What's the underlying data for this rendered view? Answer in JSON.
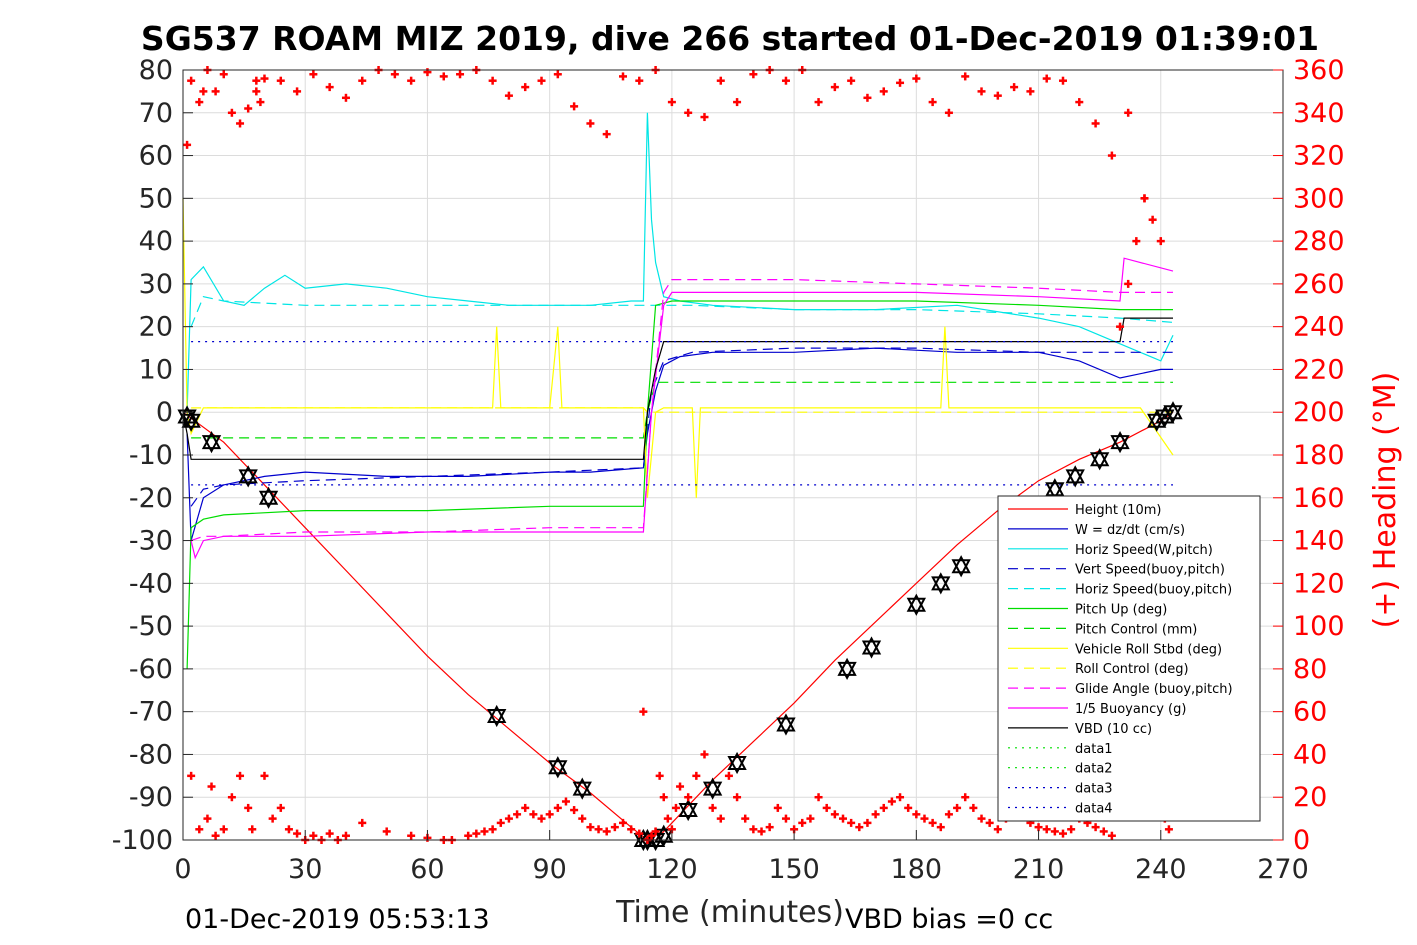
{
  "chart_data": {
    "type": "line",
    "title": "SG537 ROAM MIZ 2019, dive 266 started 01-Dec-2019 01:39:01",
    "xlabel": "Time (minutes)",
    "ylabel_left": "",
    "ylabel_right": "(+) Heading (°M)",
    "xlim": [
      0,
      270
    ],
    "ylim_left": [
      -100,
      80
    ],
    "ylim_right": [
      0,
      360
    ],
    "x_ticks": [
      "0",
      "30",
      "60",
      "90",
      "120",
      "150",
      "180",
      "210",
      "240",
      "270"
    ],
    "y_left_ticks": [
      "-100",
      "-90",
      "-80",
      "-70",
      "-60",
      "-50",
      "-40",
      "-30",
      "-20",
      "-10",
      "0",
      "10",
      "20",
      "30",
      "40",
      "50",
      "60",
      "70",
      "80"
    ],
    "y_right_ticks": [
      "0",
      "20",
      "40",
      "60",
      "80",
      "100",
      "120",
      "140",
      "160",
      "180",
      "200",
      "220",
      "240",
      "260",
      "280",
      "300",
      "320",
      "340",
      "360"
    ],
    "grid": true,
    "legend_position": "bottom-right",
    "footer_left": "01-Dec-2019 05:53:13",
    "footer_right": "VBD bias =0 cc",
    "colors": {
      "height": "#ff0000",
      "w": "#0000cd",
      "horiz": "#00e5e5",
      "pitch": "#00dd00",
      "roll": "#ffff00",
      "glide": "#ff00ff",
      "vbd": "#000000",
      "heading": "#ff0000"
    },
    "series": [
      {
        "name": "Height (10m)",
        "style": "solid",
        "color": "#ff0000",
        "x": [
          0,
          10,
          20,
          30,
          40,
          50,
          60,
          70,
          80,
          90,
          100,
          110,
          114,
          116,
          120,
          130,
          140,
          150,
          160,
          170,
          180,
          190,
          200,
          210,
          220,
          230,
          240,
          243
        ],
        "y": [
          0,
          -7,
          -17,
          -27,
          -37,
          -47,
          -57,
          -66,
          -74,
          -82,
          -89,
          -97,
          -100,
          -100,
          -96,
          -86,
          -77,
          -68,
          -58,
          -49,
          -40,
          -31,
          -23,
          -16,
          -11,
          -7,
          -2,
          0
        ]
      },
      {
        "name": "W = dz/dt (cm/s)",
        "style": "solid",
        "color": "#0000cd",
        "x": [
          1,
          2,
          5,
          10,
          20,
          30,
          50,
          70,
          90,
          100,
          113,
          114,
          116,
          118,
          122,
          130,
          150,
          170,
          190,
          210,
          220,
          230,
          240,
          243
        ],
        "y": [
          -5,
          -30,
          -20,
          -17,
          -15,
          -14,
          -15,
          -15,
          -14,
          -14,
          -13,
          -5,
          5,
          11,
          13,
          14,
          14,
          15,
          14,
          14,
          12,
          8,
          10,
          10
        ]
      },
      {
        "name": "Horiz Speed(W,pitch)",
        "style": "solid",
        "color": "#00e5e5",
        "x": [
          1,
          2,
          5,
          10,
          15,
          20,
          25,
          30,
          40,
          50,
          60,
          70,
          80,
          90,
          100,
          110,
          113,
          114,
          115,
          116,
          118,
          122,
          130,
          150,
          170,
          190,
          210,
          220,
          230,
          240,
          243
        ],
        "y": [
          0,
          31,
          34,
          26,
          25,
          29,
          32,
          29,
          30,
          29,
          27,
          26,
          25,
          25,
          25,
          26,
          26,
          70,
          45,
          35,
          27,
          26,
          25,
          24,
          24,
          25,
          22,
          20,
          16,
          12,
          18
        ]
      },
      {
        "name": "Vert Speed(buoy,pitch)",
        "style": "dash",
        "color": "#0000cd",
        "x": [
          2,
          5,
          10,
          30,
          60,
          90,
          113,
          115,
          118,
          125,
          150,
          180,
          210,
          230,
          243
        ],
        "y": [
          -22,
          -18,
          -17,
          -16,
          -15,
          -14,
          -13,
          5,
          12,
          14,
          15,
          15,
          14,
          14,
          14
        ]
      },
      {
        "name": "Horiz Speed(buoy,pitch)",
        "style": "dash",
        "color": "#00e5e5",
        "x": [
          2,
          5,
          10,
          30,
          60,
          90,
          113,
          115,
          118,
          125,
          150,
          180,
          210,
          230,
          243
        ],
        "y": [
          20,
          27,
          26,
          25,
          25,
          25,
          25,
          25,
          25,
          25,
          24,
          24,
          23,
          22,
          21
        ]
      },
      {
        "name": "Pitch Up (deg)",
        "style": "solid",
        "color": "#00dd00",
        "x": [
          1,
          2,
          5,
          10,
          30,
          60,
          90,
          113,
          114,
          116,
          120,
          150,
          180,
          210,
          230,
          240,
          243
        ],
        "y": [
          -60,
          -27,
          -25,
          -24,
          -23,
          -23,
          -22,
          -22,
          0,
          25,
          26,
          26,
          26,
          25,
          24,
          24,
          24
        ]
      },
      {
        "name": "Pitch Control (mm)",
        "style": "dash",
        "color": "#00dd00",
        "x": [
          2,
          113,
          114,
          116,
          243
        ],
        "y": [
          -6,
          -6,
          0,
          7,
          7
        ]
      },
      {
        "name": "Vehicle Roll Stbd (deg)",
        "style": "solid",
        "color": "#ffff00",
        "x": [
          0,
          1,
          2,
          5,
          20,
          40,
          60,
          76,
          77,
          78,
          90,
          92,
          93,
          94,
          110,
          113,
          114,
          116,
          118,
          125,
          126,
          127,
          140,
          160,
          186,
          187,
          188,
          200,
          220,
          235,
          243
        ],
        "y": [
          50,
          0,
          -5,
          1,
          1,
          1,
          1,
          1,
          20,
          1,
          1,
          20,
          1,
          1,
          1,
          1,
          -20,
          0,
          1,
          1,
          -20,
          1,
          1,
          1,
          1,
          20,
          1,
          1,
          1,
          1,
          -10
        ]
      },
      {
        "name": "Roll Control (deg)",
        "style": "dash",
        "color": "#ffff00",
        "x": [
          2,
          113,
          114,
          243
        ],
        "y": [
          1,
          1,
          0,
          0
        ]
      },
      {
        "name": "Glide Angle (buoy,pitch)",
        "style": "dash",
        "color": "#ff00ff",
        "x": [
          2,
          5,
          10,
          30,
          60,
          90,
          113,
          115,
          118,
          120,
          150,
          180,
          210,
          230,
          243
        ],
        "y": [
          -30,
          -29,
          -29,
          -28,
          -28,
          -27,
          -27,
          0,
          28,
          31,
          31,
          30,
          29,
          28,
          28
        ]
      },
      {
        "name": "1/5 Buoyancy (g)",
        "style": "solid",
        "color": "#ff00ff",
        "x": [
          2,
          3,
          5,
          10,
          30,
          60,
          90,
          113,
          115,
          118,
          120,
          150,
          180,
          210,
          230,
          231,
          243
        ],
        "y": [
          -30,
          -34,
          -30,
          -29,
          -29,
          -28,
          -28,
          -28,
          0,
          25,
          28,
          28,
          28,
          27,
          26,
          36,
          33
        ]
      },
      {
        "name": "VBD (10 cc)",
        "style": "solid",
        "color": "#000000",
        "x": [
          0,
          1,
          2,
          113,
          114,
          116,
          118,
          230,
          231,
          243
        ],
        "y": [
          0,
          -5,
          -11,
          -11,
          0,
          10,
          16.5,
          16.5,
          22,
          22
        ]
      },
      {
        "name": "data1",
        "style": "dot",
        "color": "#00dd00",
        "x": [],
        "y": []
      },
      {
        "name": "data2",
        "style": "dot",
        "color": "#00dd00",
        "x": [],
        "y": []
      },
      {
        "name": "data3",
        "style": "dot",
        "color": "#0000cd",
        "x": [
          2,
          243
        ],
        "y": [
          16.5,
          16.5
        ]
      },
      {
        "name": "data4",
        "style": "dot",
        "color": "#0000cd",
        "x": [
          2,
          243
        ],
        "y": [
          -17,
          -17
        ]
      }
    ],
    "sample_markers": {
      "x": [
        1,
        2,
        7,
        16,
        21,
        77,
        92,
        98,
        113,
        114,
        116,
        118,
        124,
        130,
        136,
        148,
        163,
        169,
        180,
        186,
        191,
        214,
        219,
        225,
        230,
        239,
        241,
        243
      ],
      "y": [
        -1,
        -2,
        -7,
        -15,
        -20,
        -71,
        -83,
        -88,
        -100,
        -100,
        -100,
        -99,
        -93,
        -88,
        -82,
        -73,
        -60,
        -55,
        -45,
        -40,
        -36,
        -18,
        -15,
        -11,
        -7,
        -2,
        -1,
        0
      ]
    },
    "heading_points": {
      "axis": "right",
      "color": "#ff0000",
      "x": [
        1,
        2,
        4,
        5,
        6,
        7,
        8,
        10,
        12,
        14,
        16,
        17,
        18,
        19,
        20,
        22,
        24,
        26,
        28,
        30,
        32,
        34,
        36,
        38,
        40,
        44,
        50,
        56,
        60,
        64,
        66,
        70,
        72,
        74,
        76,
        78,
        80,
        82,
        84,
        86,
        88,
        90,
        92,
        94,
        96,
        98,
        100,
        102,
        104,
        106,
        108,
        110,
        112,
        113,
        114,
        115,
        116,
        117,
        118,
        119,
        120,
        121,
        122,
        124,
        126,
        128,
        130,
        132,
        134,
        136,
        138,
        140,
        142,
        144,
        146,
        148,
        150,
        152,
        154,
        156,
        158,
        160,
        162,
        164,
        166,
        168,
        170,
        172,
        174,
        176,
        178,
        180,
        182,
        184,
        186,
        188,
        190,
        192,
        194,
        196,
        198,
        200,
        202,
        204,
        206,
        208,
        210,
        212,
        214,
        216,
        218,
        220,
        222,
        224,
        226,
        228,
        230,
        232,
        234,
        236,
        238,
        240,
        241,
        242
      ],
      "y": [
        325,
        30,
        5,
        350,
        10,
        25,
        2,
        5,
        20,
        30,
        15,
        5,
        355,
        345,
        30,
        10,
        15,
        5,
        3,
        0,
        2,
        0,
        3,
        0,
        2,
        8,
        4,
        2,
        1,
        0,
        0,
        2,
        3,
        4,
        5,
        8,
        10,
        12,
        15,
        12,
        10,
        12,
        15,
        18,
        14,
        10,
        6,
        5,
        4,
        6,
        8,
        5,
        3,
        60,
        0,
        2,
        4,
        30,
        20,
        10,
        5,
        15,
        25,
        20,
        30,
        40,
        15,
        10,
        30,
        20,
        10,
        5,
        4,
        6,
        15,
        10,
        5,
        8,
        10,
        20,
        15,
        12,
        10,
        8,
        6,
        8,
        12,
        15,
        18,
        20,
        15,
        12,
        10,
        8,
        6,
        12,
        15,
        20,
        15,
        10,
        8,
        5,
        10,
        15,
        12,
        8,
        6,
        5,
        4,
        3,
        5,
        10,
        8,
        6,
        4,
        2,
        240,
        260,
        280,
        300,
        290,
        20,
        10,
        5
      ]
    },
    "heading_top_points": {
      "axis": "right",
      "color": "#ff0000",
      "x": [
        2,
        4,
        6,
        8,
        10,
        12,
        14,
        16,
        18,
        20,
        24,
        28,
        32,
        36,
        40,
        44,
        48,
        52,
        56,
        60,
        64,
        68,
        72,
        76,
        80,
        84,
        88,
        92,
        96,
        100,
        104,
        108,
        112,
        116,
        120,
        124,
        128,
        132,
        136,
        140,
        144,
        148,
        152,
        156,
        160,
        164,
        168,
        172,
        176,
        180,
        184,
        188,
        192,
        196,
        200,
        204,
        208,
        212,
        216,
        220,
        224,
        228,
        232,
        236,
        240
      ],
      "y": [
        355,
        345,
        360,
        350,
        358,
        340,
        335,
        342,
        350,
        356,
        355,
        350,
        358,
        352,
        347,
        355,
        360,
        358,
        355,
        359,
        357,
        358,
        360,
        355,
        348,
        352,
        355,
        358,
        343,
        335,
        330,
        357,
        355,
        360,
        345,
        340,
        338,
        355,
        345,
        358,
        360,
        355,
        360,
        345,
        352,
        355,
        347,
        350,
        354,
        356,
        345,
        340,
        357,
        350,
        348,
        352,
        350,
        356,
        355,
        345,
        335,
        320,
        340,
        300,
        280
      ]
    }
  }
}
